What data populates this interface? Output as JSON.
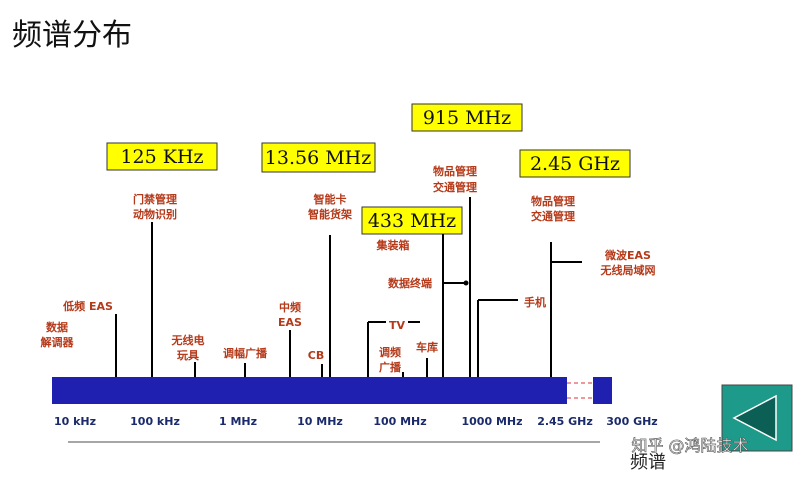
{
  "title": "频谱分布",
  "axis_title": "频谱",
  "watermark": "知乎 @鸿陆技术",
  "bands": [
    "10 kHz",
    "100 kHz",
    "1 MHz",
    "10 MHz",
    "100 MHz",
    "1000 MHz",
    "2.45 GHz",
    "300 GHz"
  ],
  "highlights": [
    "125 KHz",
    "13.56 MHz",
    "433 MHz",
    "915 MHz",
    "2.45 GHz"
  ],
  "applications": [
    [
      "门禁管理",
      "动物识别"
    ],
    [
      "智能卡",
      "智能货架"
    ],
    [
      "物品管理",
      "交通管理"
    ],
    [
      "物品管理",
      "交通管理"
    ],
    [
      "集装箱"
    ],
    [
      "微波EAS",
      "无线局域网"
    ],
    [
      "数据终端"
    ],
    [
      "手机"
    ],
    [
      "TV"
    ],
    [
      "车库"
    ],
    [
      "调频",
      "广播"
    ],
    [
      "CB"
    ],
    [
      "中频",
      "EAS"
    ],
    [
      "调幅广播"
    ],
    [
      "无线电",
      "玩具"
    ],
    [
      "低频 EAS"
    ],
    [
      "数据",
      "解调器"
    ]
  ]
}
